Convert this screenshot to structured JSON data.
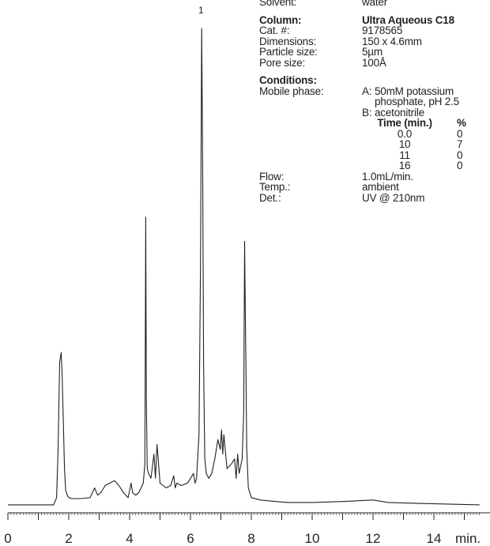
{
  "info": {
    "solvent": {
      "label": "Solvent:",
      "value": "water"
    },
    "column": {
      "label": "Column:",
      "value": "Ultra Aqueous C18"
    },
    "cat": {
      "label": "Cat. #:",
      "value": "9178565"
    },
    "dimensions": {
      "label": "Dimensions:",
      "value": "150 x 4.6mm"
    },
    "particle": {
      "label": "Particle size:",
      "value": "5µm"
    },
    "pore": {
      "label": "Pore size:",
      "value": "100Å"
    },
    "conditions": {
      "label": "Conditions:"
    },
    "mobile": {
      "label": "Mobile phase:",
      "a_letter": "A:",
      "a_line1": "50mM potassium",
      "a_line2": "phosphate, pH 2.5",
      "b_letter": "B:",
      "b_value": "acetonitrile"
    },
    "gradient": {
      "col_time": "Time (min.)",
      "col_pct": "%",
      "rows": [
        {
          "time": "0.0",
          "pct": "0"
        },
        {
          "time": "10",
          "pct": "7"
        },
        {
          "time": "11",
          "pct": "0"
        },
        {
          "time": "16",
          "pct": "0"
        }
      ]
    },
    "flow": {
      "label": "Flow:",
      "value": "1.0mL/min."
    },
    "temp": {
      "label": "Temp.:",
      "value": "ambient"
    },
    "det": {
      "label": "Det.:",
      "value": "UV @ 210nm"
    }
  },
  "chart_data": {
    "type": "line",
    "xlabel": "min.",
    "xlim": [
      0,
      15.5
    ],
    "ylim": [
      0,
      1
    ],
    "xticks": [
      "0",
      "2",
      "4",
      "6",
      "8",
      "10",
      "12",
      "14"
    ],
    "peak_labels": [
      {
        "text": "1",
        "x": 6.4
      }
    ],
    "series": [
      {
        "x": [
          0,
          1.5,
          1.6,
          1.65,
          1.7,
          1.75,
          1.78,
          1.82,
          1.86,
          1.9,
          1.95,
          2.0,
          2.1,
          2.4,
          2.7,
          2.85,
          2.95,
          3.05,
          3.2,
          3.35,
          3.5,
          3.65,
          3.8,
          3.95,
          4.05,
          4.1,
          4.2,
          4.3,
          4.45,
          4.5,
          4.53,
          4.55,
          4.58,
          4.62,
          4.7,
          4.8,
          4.85,
          4.9,
          5.0,
          5.2,
          5.35,
          5.45,
          5.5,
          5.55,
          5.7,
          5.9,
          6.1,
          6.15,
          6.2,
          6.28,
          6.33,
          6.37,
          6.4,
          6.43,
          6.47,
          6.52,
          6.6,
          6.7,
          6.8,
          6.9,
          6.98,
          7.02,
          7.06,
          7.1,
          7.2,
          7.35,
          7.45,
          7.5,
          7.55,
          7.6,
          7.7,
          7.75,
          7.78,
          7.8,
          7.82,
          7.85,
          7.9,
          8.0,
          8.3,
          8.8,
          9.2,
          10.0,
          11.0,
          12.0,
          12.5,
          13.5,
          15.5
        ],
        "y": [
          0.005,
          0.005,
          0.02,
          0.12,
          0.3,
          0.32,
          0.28,
          0.18,
          0.08,
          0.035,
          0.025,
          0.02,
          0.018,
          0.018,
          0.02,
          0.04,
          0.025,
          0.03,
          0.045,
          0.05,
          0.055,
          0.045,
          0.03,
          0.02,
          0.05,
          0.03,
          0.025,
          0.03,
          0.05,
          0.09,
          0.6,
          0.22,
          0.08,
          0.07,
          0.06,
          0.11,
          0.06,
          0.13,
          0.05,
          0.04,
          0.045,
          0.065,
          0.04,
          0.05,
          0.045,
          0.05,
          0.07,
          0.05,
          0.06,
          0.15,
          0.5,
          0.99,
          0.72,
          0.3,
          0.1,
          0.07,
          0.06,
          0.07,
          0.1,
          0.14,
          0.12,
          0.16,
          0.11,
          0.15,
          0.08,
          0.09,
          0.1,
          0.06,
          0.11,
          0.07,
          0.1,
          0.2,
          0.55,
          0.42,
          0.3,
          0.12,
          0.04,
          0.02,
          0.015,
          0.012,
          0.01,
          0.01,
          0.012,
          0.015,
          0.01,
          0.008,
          0.005
        ]
      }
    ]
  }
}
